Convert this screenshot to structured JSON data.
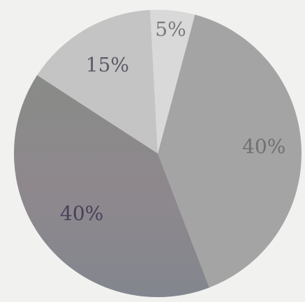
{
  "chart_data": {
    "type": "pie",
    "title": "",
    "start_angle_deg": 15,
    "direction": "clockwise",
    "slices": [
      {
        "label": "40%",
        "value": 40,
        "color": "#a4a4a4",
        "label_color": "#707070"
      },
      {
        "label": "40%",
        "value": 40,
        "color": "#8f8d8f",
        "label_color": "#47405a"
      },
      {
        "label": "15%",
        "value": 15,
        "color": "#c4c4c4",
        "label_color": "#5a5a66"
      },
      {
        "label": "5%",
        "value": 5,
        "color": "#d9d9d9",
        "label_color": "#7a7a7a"
      }
    ]
  }
}
